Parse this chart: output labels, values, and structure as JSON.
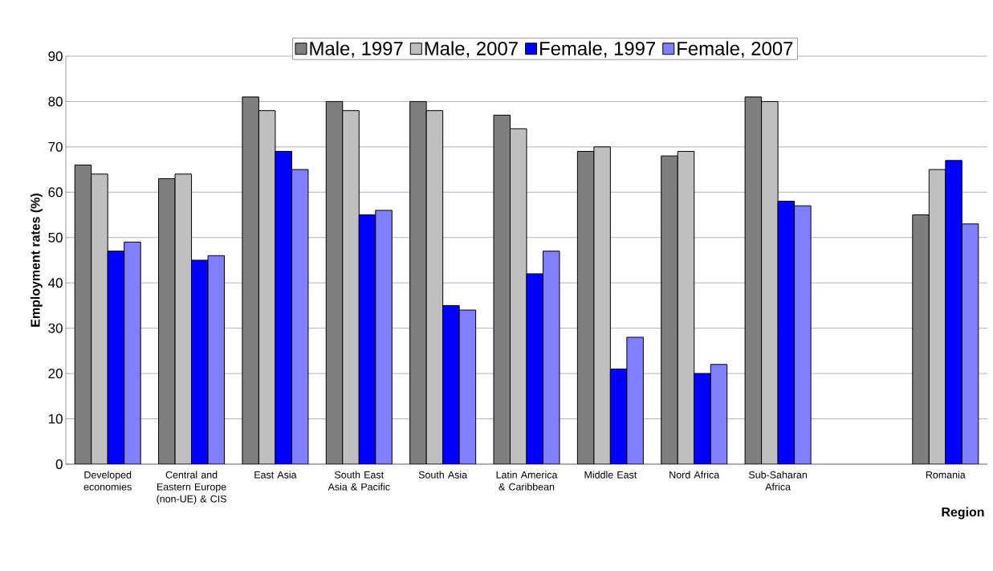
{
  "chart_data": {
    "type": "bar",
    "ylabel": "Employment rates (%)",
    "xlabel": "Region",
    "categories": [
      "Developed economies",
      "Central and Eastern Europe (non-UE) & CIS",
      "East Asia",
      "South East Asia & Pacific",
      "South Asia",
      "Latin America & Caribbean",
      "Middle East",
      "Nord Africa",
      "Sub-Saharan Africa",
      null,
      "Romania"
    ],
    "series": [
      {
        "name": "Male, 1997",
        "color": "#7f7f7f",
        "values": [
          66,
          63,
          81,
          80,
          80,
          77,
          69,
          68,
          81,
          null,
          55
        ]
      },
      {
        "name": "Male, 2007",
        "color": "#bfbfbf",
        "values": [
          64,
          64,
          78,
          78,
          78,
          74,
          70,
          69,
          80,
          null,
          65
        ]
      },
      {
        "name": "Female, 1997",
        "color": "#0000ff",
        "values": [
          47,
          45,
          69,
          55,
          35,
          42,
          21,
          20,
          58,
          null,
          67
        ]
      },
      {
        "name": "Female, 2007",
        "color": "#7f7fff",
        "values": [
          49,
          46,
          65,
          56,
          34,
          47,
          28,
          22,
          57,
          null,
          53
        ]
      }
    ],
    "ylim": [
      0,
      90
    ],
    "yticks": [
      0,
      10,
      20,
      30,
      40,
      50,
      60,
      70,
      80,
      90
    ],
    "grid": "y",
    "legend": "top"
  }
}
